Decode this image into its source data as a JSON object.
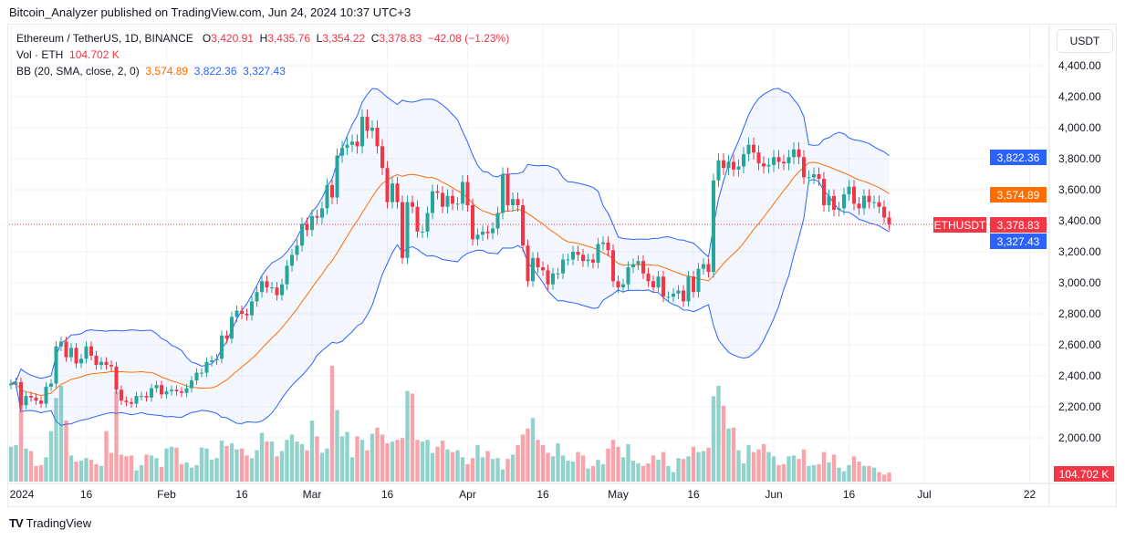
{
  "publisher_line": "Bitcoin_Analyzer published on TradingView.com, Jun 24, 2024 10:37 UTC+3",
  "legend": {
    "symbol": "Ethereum / TetherUS, 1D, BINANCE",
    "o_label": "O",
    "o": "3,420.91",
    "h_label": "H",
    "h": "3,435.76",
    "l_label": "L",
    "l": "3,354.22",
    "c_label": "C",
    "c": "3,378.83",
    "change": "−42.08 (−1.23%)",
    "vol_label": "Vol · ETH",
    "vol": "104.702 K",
    "bb_label": "BB (20, SMA, close, 2, 0)",
    "bb_mid": "3,574.89",
    "bb_upper": "3,822.36",
    "bb_lower": "3,327.43"
  },
  "currency_button": "USDT",
  "badges": {
    "symbol": "ETHUSDT",
    "price": "3,378.83",
    "upper": "3,822.36",
    "mid": "3,574.89",
    "lower": "3,327.43",
    "volume": "104.702 K"
  },
  "footer_logo": "TradingView",
  "colors": {
    "up": "#26a69a",
    "down": "#f23645",
    "bb_band": "#2962ff",
    "bb_mid": "#ff6d00",
    "badge_symbol": "#f23645"
  },
  "chart_data": {
    "type": "candlestick",
    "title": "Ethereum / TetherUS, 1D, BINANCE",
    "start_date": "2024-01-01",
    "interval": "1D",
    "ylim": [
      1900,
      4500
    ],
    "y_ticks": [
      "4,400.00",
      "4,200.00",
      "4,000.00",
      "3,800.00",
      "3,600.00",
      "3,400.00",
      "3,200.00",
      "3,000.00",
      "2,800.00",
      "2,600.00",
      "2,400.00",
      "2,200.00",
      "2,000.00"
    ],
    "y_tick_values": [
      4400,
      4200,
      4000,
      3800,
      3600,
      3400,
      3200,
      3000,
      2800,
      2600,
      2400,
      2200,
      2000
    ],
    "x_ticks": [
      {
        "label": "2024",
        "date": "2024-01-01"
      },
      {
        "label": "16",
        "date": "2024-01-16"
      },
      {
        "label": "Feb",
        "date": "2024-02-01"
      },
      {
        "label": "16",
        "date": "2024-02-16"
      },
      {
        "label": "Mar",
        "date": "2024-03-01"
      },
      {
        "label": "16",
        "date": "2024-03-16"
      },
      {
        "label": "Apr",
        "date": "2024-04-01"
      },
      {
        "label": "16",
        "date": "2024-04-16"
      },
      {
        "label": "May",
        "date": "2024-05-01"
      },
      {
        "label": "16",
        "date": "2024-05-16"
      },
      {
        "label": "Jun",
        "date": "2024-06-01"
      },
      {
        "label": "16",
        "date": "2024-06-16"
      },
      {
        "label": "Jul",
        "date": "2024-07-01"
      },
      {
        "label": "22",
        "date": "2024-07-22"
      }
    ],
    "grid": true,
    "indicators": {
      "bollinger": {
        "length": 20,
        "ma": "SMA",
        "source": "close",
        "stddev": 2,
        "offset": 0
      }
    },
    "close": [
      2350,
      2360,
      2210,
      2270,
      2260,
      2240,
      2220,
      2330,
      2350,
      2590,
      2620,
      2520,
      2580,
      2480,
      2510,
      2590,
      2530,
      2470,
      2490,
      2470,
      2460,
      2310,
      2240,
      2230,
      2220,
      2270,
      2270,
      2260,
      2320,
      2340,
      2280,
      2300,
      2310,
      2300,
      2290,
      2320,
      2370,
      2420,
      2420,
      2490,
      2500,
      2510,
      2660,
      2640,
      2780,
      2820,
      2800,
      2790,
      2880,
      2940,
      3010,
      2970,
      2970,
      2920,
      2990,
      3110,
      3180,
      3240,
      3380,
      3340,
      3430,
      3420,
      3480,
      3630,
      3550,
      3820,
      3870,
      3890,
      3910,
      3880,
      4070,
      3980,
      4000,
      3880,
      3740,
      3520,
      3640,
      3520,
      3160,
      3520,
      3490,
      3330,
      3330,
      3450,
      3590,
      3580,
      3490,
      3560,
      3510,
      3510,
      3650,
      3500,
      3280,
      3310,
      3330,
      3320,
      3350,
      3450,
      3700,
      3500,
      3540,
      3500,
      3240,
      3010,
      3160,
      3100,
      3080,
      2990,
      3060,
      3060,
      3150,
      3150,
      3200,
      3180,
      3140,
      3150,
      3130,
      3250,
      3260,
      3210,
      3010,
      2970,
      2990,
      3100,
      3120,
      3140,
      3060,
      3010,
      2970,
      3040,
      2910,
      2910,
      2930,
      2950,
      2880,
      3040,
      2940,
      3090,
      3120,
      3070,
      3660,
      3790,
      3740,
      3780,
      3730,
      3750,
      3830,
      3890,
      3840,
      3770,
      3750,
      3760,
      3810,
      3780,
      3770,
      3810,
      3860,
      3810,
      3680,
      3680,
      3700,
      3670,
      3500,
      3560,
      3470,
      3480,
      3570,
      3620,
      3510,
      3480,
      3560,
      3520,
      3520,
      3490,
      3420.91,
      3378.83
    ],
    "volume_k": [
      400,
      420,
      900,
      380,
      350,
      180,
      190,
      280,
      580,
      960,
      1100,
      700,
      300,
      230,
      240,
      270,
      250,
      200,
      180,
      580,
      330,
      1040,
      310,
      290,
      300,
      130,
      190,
      310,
      300,
      270,
      170,
      380,
      400,
      390,
      200,
      220,
      160,
      190,
      390,
      380,
      250,
      270,
      470,
      410,
      440,
      370,
      380,
      300,
      270,
      360,
      560,
      460,
      460,
      290,
      350,
      480,
      540,
      460,
      430,
      360,
      700,
      520,
      330,
      380,
      1330,
      820,
      520,
      570,
      280,
      520,
      480,
      360,
      550,
      620,
      540,
      440,
      460,
      480,
      500,
      1040,
      1010,
      480,
      460,
      480,
      330,
      400,
      470,
      370,
      340,
      360,
      280,
      200,
      270,
      420,
      280,
      350,
      260,
      270,
      140,
      260,
      310,
      420,
      540,
      610,
      730,
      480,
      420,
      330,
      290,
      440,
      300,
      240,
      230,
      340,
      300,
      150,
      180,
      250,
      200,
      380,
      480,
      400,
      280,
      430,
      240,
      210,
      180,
      210,
      300,
      250,
      340,
      180,
      110,
      270,
      260,
      290,
      400,
      340,
      350,
      390,
      980,
      1100,
      870,
      610,
      620,
      360,
      210,
      420,
      340,
      370,
      430,
      340,
      290,
      190,
      200,
      290,
      300,
      260,
      370,
      180,
      190,
      200,
      340,
      220,
      310,
      160,
      120,
      190,
      290,
      230,
      180,
      180,
      160,
      110,
      80,
      104.702
    ]
  }
}
